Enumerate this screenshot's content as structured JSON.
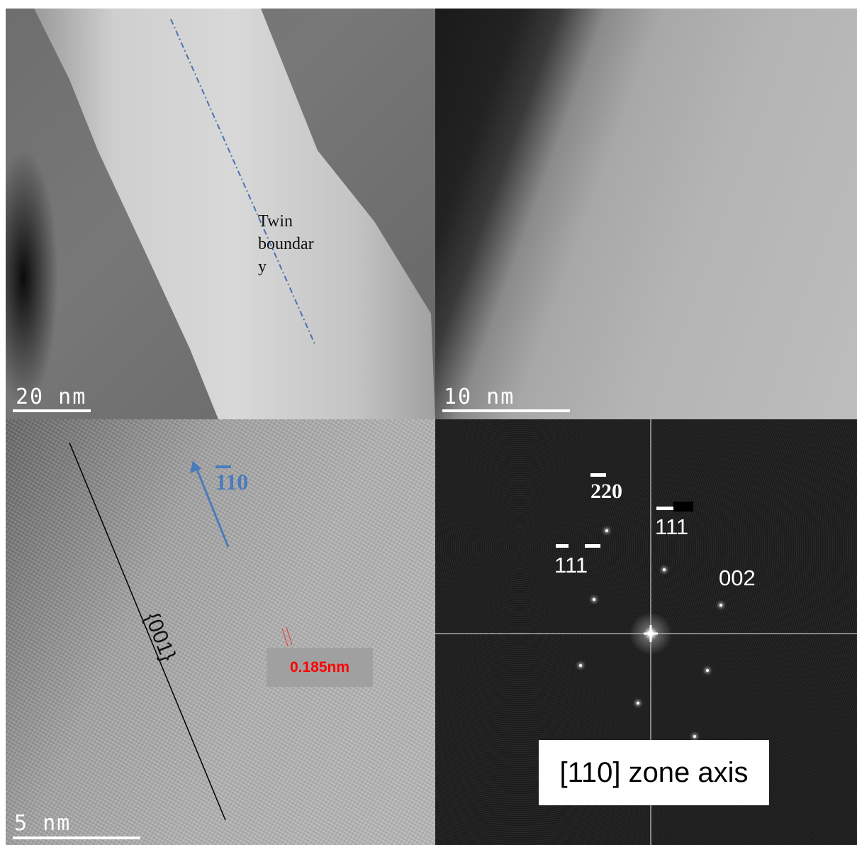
{
  "panels": {
    "overview": {
      "scale_text": "20 nm",
      "annotation": [
        "Twin",
        "boundar",
        "y"
      ]
    },
    "edge": {
      "scale_text": "10 nm"
    },
    "hrtem": {
      "scale_text": "5 nm",
      "direction_label": "110",
      "plane_label": "{001}",
      "d_spacing": "0.185nm",
      "colors": {
        "direction": "#4a7bbd",
        "d_spacing": "#ff0000"
      }
    },
    "fft": {
      "spots": [
        "220",
        "111",
        "111",
        "002"
      ],
      "zone_axis": "[110] zone axis"
    }
  }
}
